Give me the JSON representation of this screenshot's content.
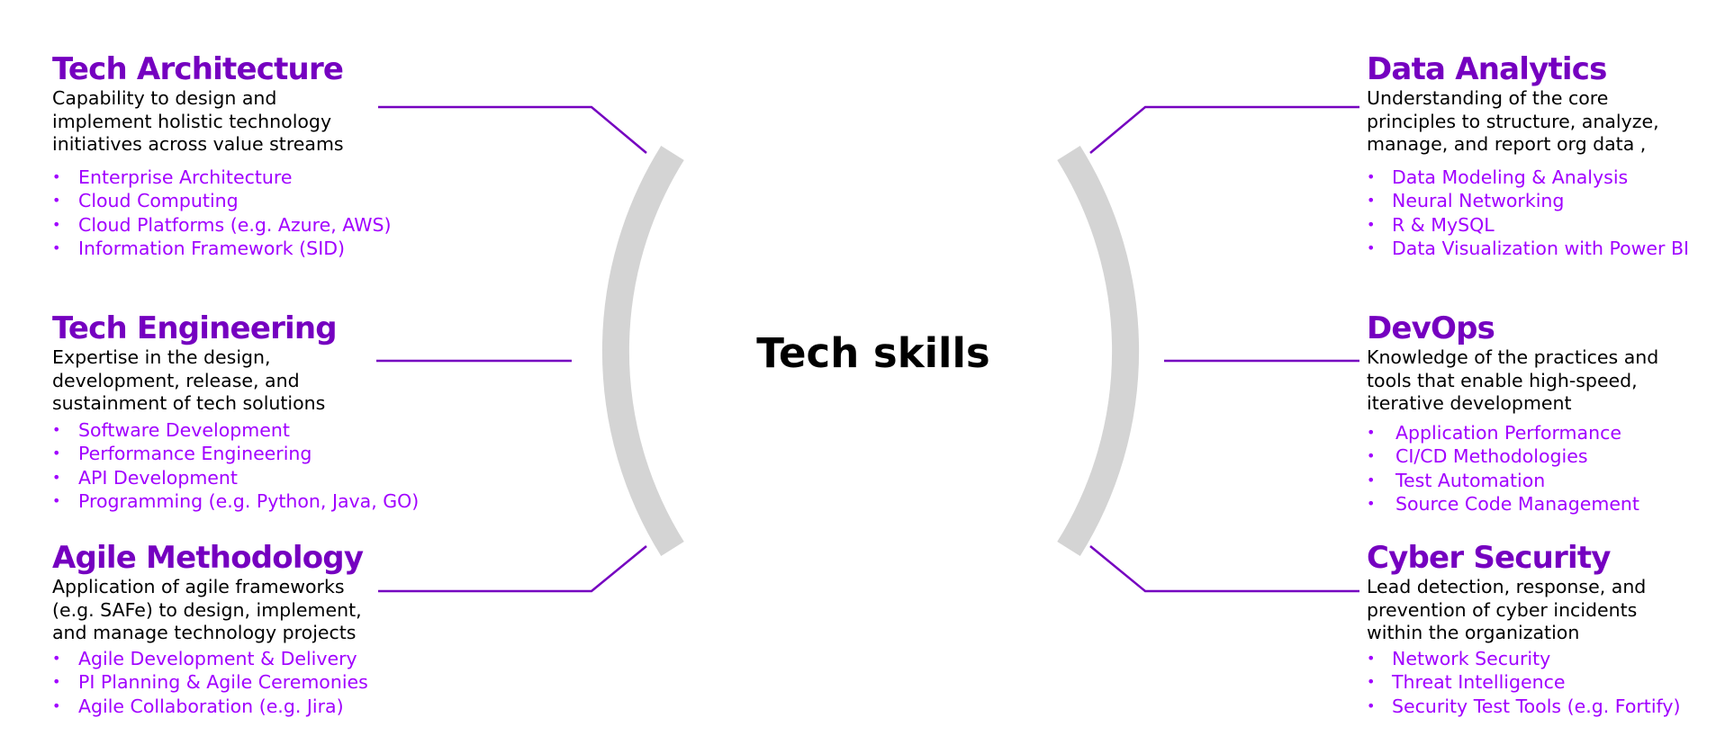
{
  "center": {
    "title": "Tech skills"
  },
  "colors": {
    "heading": "#7500c0",
    "list_item": "#a100ff",
    "description": "#000000",
    "connector": "#7500c0",
    "arc": "#d4d4d4"
  },
  "left": [
    {
      "title": "Tech Architecture",
      "description": "Capability to design and\nimplement holistic technology\ninitiatives across value streams",
      "items": [
        "Enterprise Architecture",
        "Cloud Computing",
        "Cloud Platforms (e.g. Azure, AWS)",
        "Information Framework (SID)"
      ]
    },
    {
      "title": "Tech Engineering",
      "description": "Expertise in the design,\ndevelopment, release, and\nsustainment of tech solutions",
      "items": [
        "Software  Development",
        "Performance Engineering",
        "API Development",
        "Programming (e.g. Python, Java, GO)"
      ]
    },
    {
      "title": "Agile Methodology",
      "description": "Application of agile frameworks\n(e.g. SAFe) to design, implement,\nand manage technology projects",
      "items": [
        "Agile Development & Delivery",
        "PI Planning & Agile Ceremonies",
        "Agile Collaboration (e.g. Jira)"
      ]
    }
  ],
  "right": [
    {
      "title": "Data Analytics",
      "description": "Understanding of the core\nprinciples to structure, analyze,\nmanage, and report org data ,",
      "items": [
        "Data Modeling & Analysis",
        "Neural Networking",
        "R & MySQL",
        "Data Visualization with Power BI"
      ]
    },
    {
      "title": "DevOps",
      "description": "Knowledge of  the practices and\ntools that enable high-speed,\niterative development",
      "items": [
        "Application Performance",
        "CI/CD Methodologies",
        "Test Automation",
        "Source Code Management"
      ]
    },
    {
      "title": "Cyber Security",
      "description": "Lead detection, response, and\nprevention of cyber incidents\nwithin the organization",
      "items": [
        "Network Security",
        "Threat Intelligence",
        "Security Test Tools (e.g. Fortify)"
      ]
    }
  ],
  "bullet_char": "•"
}
